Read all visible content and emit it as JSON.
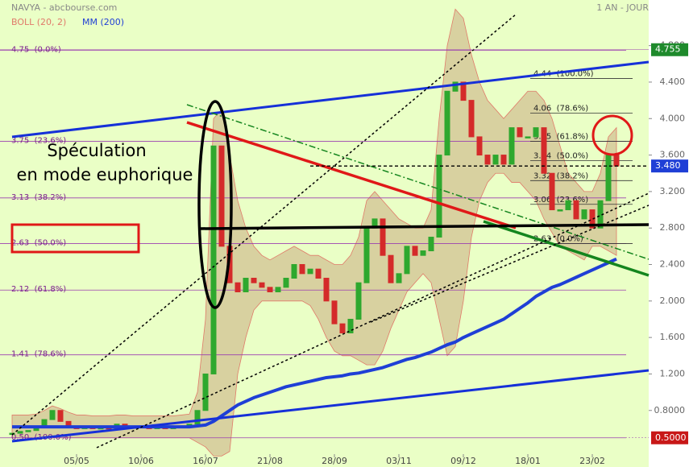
{
  "chart_data": {
    "type": "candlestick",
    "title": "NAVYA - abcbourse.com",
    "period": "1 AN - JOUR",
    "annotation": [
      "Spéculation",
      "en mode euphorique"
    ],
    "ylim": [
      0.18,
      5.3
    ],
    "yticks": [
      {
        "value": 0.8,
        "label": "0.8000"
      },
      {
        "value": 1.2,
        "label": "1.200"
      },
      {
        "value": 1.6,
        "label": "1.600"
      },
      {
        "value": 2.0,
        "label": "2.000"
      },
      {
        "value": 2.4,
        "label": "2.400"
      },
      {
        "value": 2.8,
        "label": "2.800"
      },
      {
        "value": 3.2,
        "label": "3.200"
      },
      {
        "value": 3.6,
        "label": "3.600"
      },
      {
        "value": 4.0,
        "label": "4.000"
      },
      {
        "value": 4.4,
        "label": "4.400"
      },
      {
        "value": 4.8,
        "label": "4.800"
      }
    ],
    "xlim": [
      -1.5,
      79
    ],
    "xticks": [
      {
        "value": 8,
        "label": "05/05"
      },
      {
        "value": 16,
        "label": "10/06"
      },
      {
        "value": 24,
        "label": "16/07"
      },
      {
        "value": 32,
        "label": "21/08"
      },
      {
        "value": 40,
        "label": "28/09"
      },
      {
        "value": 48,
        "label": "03/11"
      },
      {
        "value": 56,
        "label": "09/12"
      },
      {
        "value": 64,
        "label": "18/01"
      },
      {
        "value": 72,
        "label": "23/02"
      }
    ],
    "prices": [
      0.55,
      0.57,
      0.58,
      0.62,
      0.7,
      0.8,
      0.68,
      0.62,
      0.6,
      0.62,
      0.6,
      0.61,
      0.6,
      0.65,
      0.63,
      0.62,
      0.63,
      0.6,
      0.62,
      0.6,
      0.62,
      0.63,
      0.65,
      0.8,
      1.2,
      3.7,
      2.6,
      2.2,
      2.1,
      2.25,
      2.2,
      2.15,
      2.1,
      2.15,
      2.25,
      2.4,
      2.3,
      2.35,
      2.25,
      2.0,
      1.75,
      1.65,
      1.8,
      2.2,
      2.8,
      2.9,
      2.5,
      2.2,
      2.3,
      2.6,
      2.5,
      2.55,
      2.7,
      3.6,
      4.3,
      4.4,
      4.2,
      3.8,
      3.6,
      3.5,
      3.6,
      3.5,
      3.9,
      3.8,
      3.8,
      3.9,
      3.4,
      3.0,
      3.0,
      3.1,
      2.9,
      3.0,
      2.8,
      3.1,
      3.6,
      3.48
    ],
    "up_color": "#2ea82e",
    "down_color": "#d42a2a",
    "series": [
      {
        "name": "BOLL (20, 2)",
        "color": "#e07a6a",
        "upper": [
          0.75,
          0.75,
          0.75,
          0.76,
          0.8,
          0.85,
          0.82,
          0.78,
          0.75,
          0.75,
          0.74,
          0.74,
          0.74,
          0.75,
          0.75,
          0.74,
          0.74,
          0.74,
          0.74,
          0.74,
          0.74,
          0.75,
          0.76,
          1.0,
          1.8,
          4.0,
          4.1,
          3.6,
          3.1,
          2.8,
          2.6,
          2.5,
          2.45,
          2.5,
          2.55,
          2.6,
          2.55,
          2.5,
          2.5,
          2.45,
          2.4,
          2.4,
          2.5,
          2.7,
          3.1,
          3.2,
          3.1,
          3.0,
          2.9,
          2.85,
          2.8,
          2.8,
          3.0,
          4.0,
          4.8,
          5.2,
          5.1,
          4.7,
          4.4,
          4.2,
          4.1,
          4.0,
          4.1,
          4.2,
          4.3,
          4.3,
          4.2,
          4.0,
          3.7,
          3.4,
          3.3,
          3.2,
          3.2,
          3.4,
          3.8,
          3.9
        ],
        "lower": [
          0.5,
          0.5,
          0.5,
          0.5,
          0.5,
          0.5,
          0.5,
          0.5,
          0.5,
          0.5,
          0.5,
          0.5,
          0.5,
          0.5,
          0.5,
          0.5,
          0.5,
          0.5,
          0.5,
          0.5,
          0.5,
          0.5,
          0.5,
          0.45,
          0.4,
          0.3,
          0.3,
          0.35,
          1.2,
          1.6,
          1.9,
          2.0,
          2.0,
          2.0,
          2.0,
          2.0,
          2.0,
          1.95,
          1.8,
          1.6,
          1.45,
          1.4,
          1.4,
          1.35,
          1.3,
          1.3,
          1.45,
          1.7,
          1.9,
          2.1,
          2.2,
          2.3,
          2.2,
          1.8,
          1.4,
          1.5,
          2.0,
          2.7,
          3.1,
          3.3,
          3.4,
          3.4,
          3.3,
          3.3,
          3.2,
          3.1,
          2.9,
          2.75,
          2.6,
          2.55,
          2.5,
          2.45,
          2.6,
          2.6,
          2.55,
          2.5
        ]
      },
      {
        "name": "MM (200)",
        "color": "#1f3fd6",
        "values": [
          0.62,
          0.62,
          0.62,
          0.62,
          0.62,
          0.62,
          0.62,
          0.62,
          0.62,
          0.62,
          0.62,
          0.62,
          0.62,
          0.62,
          0.62,
          0.62,
          0.62,
          0.62,
          0.62,
          0.62,
          0.62,
          0.62,
          0.62,
          0.63,
          0.64,
          0.68,
          0.74,
          0.8,
          0.86,
          0.9,
          0.94,
          0.97,
          1.0,
          1.03,
          1.06,
          1.08,
          1.1,
          1.12,
          1.14,
          1.16,
          1.17,
          1.18,
          1.2,
          1.21,
          1.23,
          1.25,
          1.27,
          1.3,
          1.33,
          1.36,
          1.38,
          1.41,
          1.44,
          1.48,
          1.52,
          1.55,
          1.6,
          1.64,
          1.68,
          1.72,
          1.76,
          1.8,
          1.86,
          1.92,
          1.98,
          2.05,
          2.1,
          2.15,
          2.18,
          2.22,
          2.26,
          2.3,
          2.34,
          2.38,
          2.42,
          2.46
        ]
      }
    ],
    "fib_long": [
      {
        "value": 4.75,
        "label": "4.75  (0.0%)"
      },
      {
        "value": 3.75,
        "label": "3.75  (23.6%)"
      },
      {
        "value": 3.13,
        "label": "3.13  (38.2%)"
      },
      {
        "value": 2.63,
        "label": "2.63  (50.0%)"
      },
      {
        "value": 2.12,
        "label": "2.12  (61.8%)"
      },
      {
        "value": 1.41,
        "label": "1.41  (78.6%)"
      },
      {
        "value": 0.5,
        "label": "0.50  (100.0%)"
      }
    ],
    "fib_short": [
      {
        "value": 4.44,
        "label": "4.44  (100.0%)"
      },
      {
        "value": 4.06,
        "label": "4.06  (78.6%)"
      },
      {
        "value": 3.75,
        "label": "3.75  (61.8%)"
      },
      {
        "value": 3.54,
        "label": "3.54  (50.0%)"
      },
      {
        "value": 3.32,
        "label": "3.32  (38.2%)"
      },
      {
        "value": 3.06,
        "label": "3.06  (23.6%)"
      },
      {
        "value": 2.63,
        "label": "2.63  (0.0%)"
      }
    ],
    "high": {
      "value": 4.755,
      "label": "4.755"
    },
    "last": {
      "value": 3.48,
      "label": "3.480"
    },
    "low": {
      "value": 0.5,
      "label": "0.5000"
    }
  }
}
